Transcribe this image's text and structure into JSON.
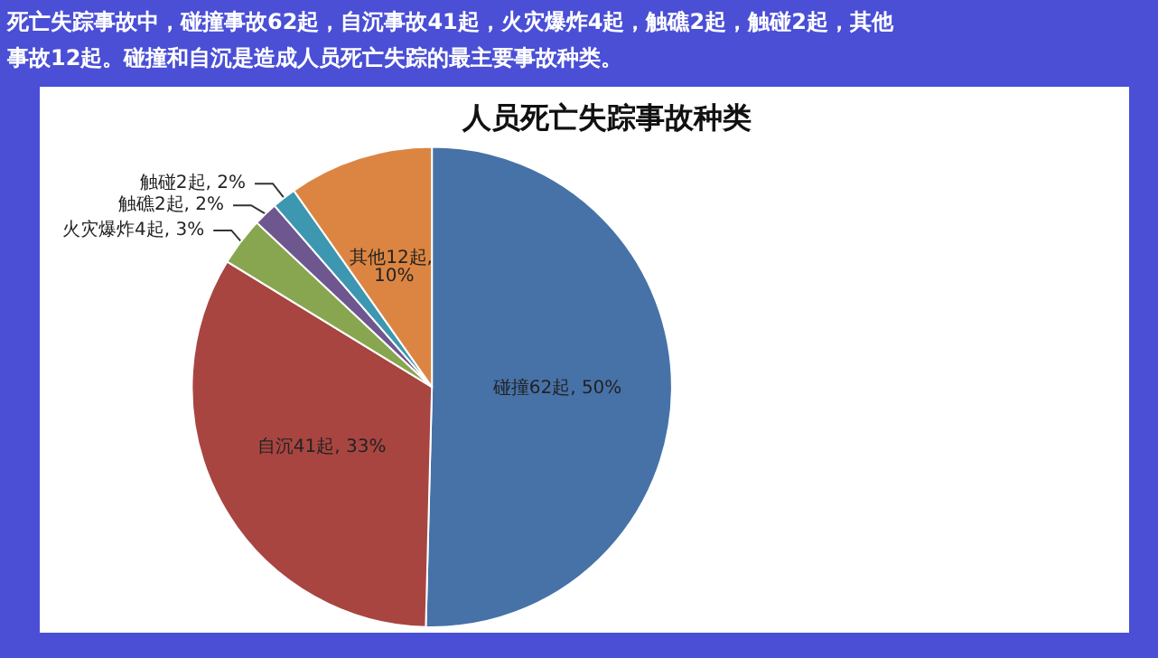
{
  "chart_data": {
    "type": "pie",
    "title": "人员死亡失踪事故种类",
    "subtitle": "死亡失踪事故中，碰撞事故62起，自沉事故41起，火灾爆炸4起，触礁2起，触碰2起，其他事故12起。碰撞和自沉是造成人员死亡失踪的最主要事故种类。",
    "categories": [
      "碰撞",
      "自沉",
      "火灾爆炸",
      "触礁",
      "触碰",
      "其他"
    ],
    "values": [
      62,
      41,
      4,
      2,
      2,
      12
    ],
    "colors": [
      "#4672a8",
      "#a84541",
      "#87a64f",
      "#6e568f",
      "#3d97b0",
      "#dc8542"
    ],
    "value_labels": [
      "62起, 50%",
      "41起, 33%",
      "4起, 3%",
      "2起, 2%",
      "2起, 2%",
      "12起, 10%"
    ]
  }
}
